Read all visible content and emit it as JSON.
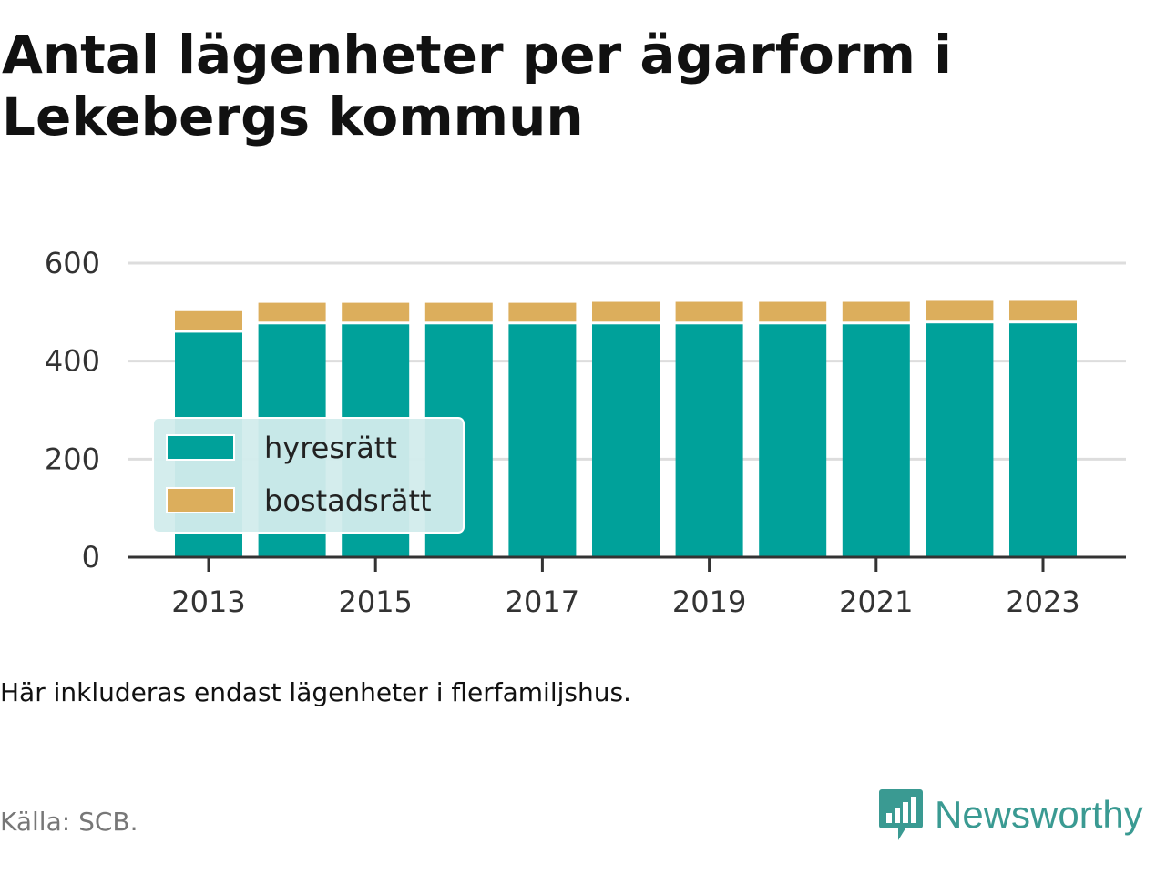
{
  "title": "Antal lägenheter per ägarform i Lekebergs kommun",
  "note": "Här inkluderas endast lägenheter i flerfamiljshus.",
  "source": "Källa: SCB.",
  "brand": {
    "name": "Newsworthy",
    "icon": "newsworthy-bar-chart-icon"
  },
  "colors": {
    "hyresratt": "#00a19a",
    "bostadsratt": "#dcae5c",
    "legend_bg": "#d2ecec",
    "brand": "#3a9a92"
  },
  "chart_data": {
    "type": "bar",
    "stacked": true,
    "x": [
      2013,
      2014,
      2015,
      2016,
      2017,
      2018,
      2019,
      2020,
      2021,
      2022,
      2023
    ],
    "x_tick_labels": [
      "2013",
      "2015",
      "2017",
      "2019",
      "2021",
      "2023"
    ],
    "series": [
      {
        "name": "hyresrätt",
        "values": [
          458,
          475,
          475,
          475,
          475,
          475,
          475,
          475,
          475,
          477,
          477
        ]
      },
      {
        "name": "bostadsrätt",
        "values": [
          44,
          44,
          44,
          44,
          44,
          46,
          46,
          46,
          46,
          46,
          46
        ]
      }
    ],
    "ylim": [
      0,
      600
    ],
    "y_ticks": [
      0,
      200,
      400,
      600
    ],
    "grid": true,
    "legend_position": "bottom-left",
    "xlabel": "",
    "ylabel": ""
  }
}
